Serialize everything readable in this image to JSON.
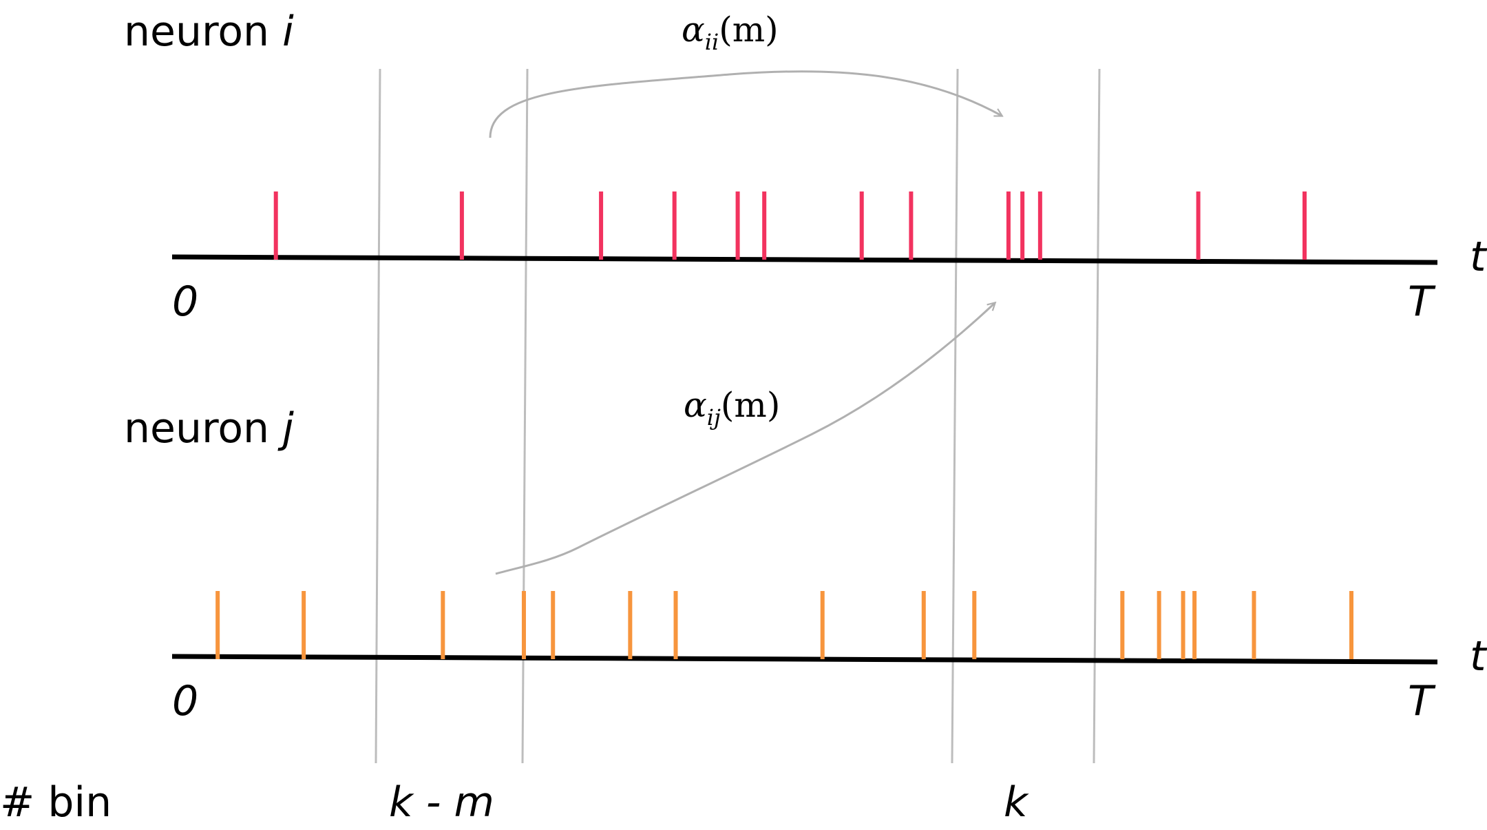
{
  "neuron_i": {
    "label": "neuron",
    "index": "i",
    "spike_times": [
      0.082,
      0.229,
      0.339,
      0.397,
      0.447,
      0.468,
      0.545,
      0.584,
      0.661,
      0.672,
      0.686,
      0.811,
      0.895
    ]
  },
  "neuron_j": {
    "label": "neuron",
    "index": "j",
    "spike_times": [
      0.036,
      0.104,
      0.214,
      0.278,
      0.301,
      0.362,
      0.398,
      0.514,
      0.594,
      0.634,
      0.751,
      0.78,
      0.799,
      0.808,
      0.855,
      0.932
    ]
  },
  "axis": {
    "start_label": "0",
    "end_label": "T",
    "var_label": "t"
  },
  "bins": {
    "row_label": "# bin",
    "k_minus_m": "k - m",
    "k": "k"
  },
  "arrows": {
    "self": {
      "symbol": "α",
      "sub": "ii",
      "arg": "(m)"
    },
    "cross": {
      "symbol": "α",
      "sub": "ij",
      "arg": "(m)"
    }
  },
  "colors": {
    "neuron_i_spikes": "#f2335f",
    "neuron_j_spikes": "#f7953d",
    "axis": "#000000",
    "bin_lines": "#bdbdbd",
    "arrows": "#b0b0b0"
  }
}
